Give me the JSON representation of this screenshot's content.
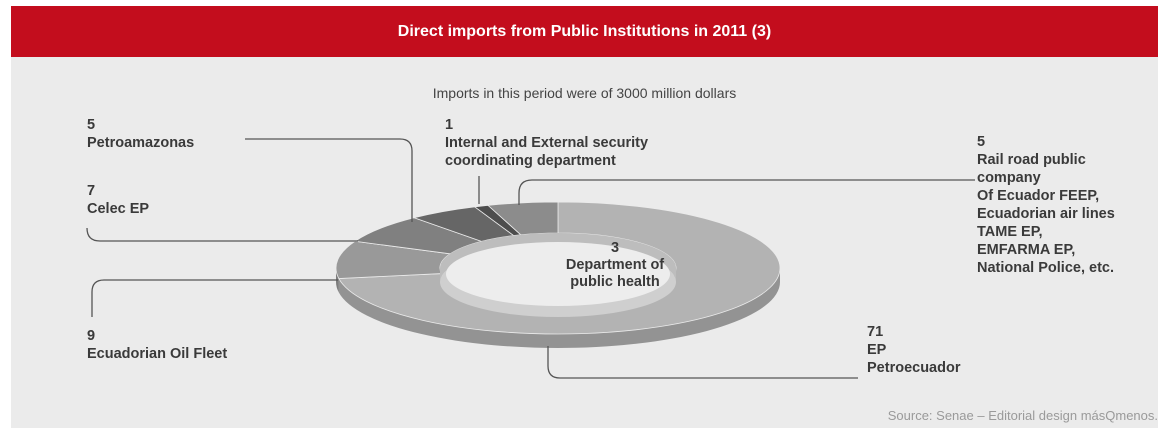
{
  "header": {
    "title": "Direct imports from Public Institutions in 2011 (3)"
  },
  "subtitle": "Imports in this period were of 3000 million dollars",
  "source": "Source: Senae – Editorial design másQmenos.",
  "colors": {
    "header": "#c30d1d",
    "background": "#ebebeb",
    "text": "#3a3a3a"
  },
  "chart_data": {
    "type": "pie",
    "style": "3d-donut",
    "title": "Direct imports from Public Institutions in 2011 (3)",
    "total": "3000 million dollars",
    "slices": [
      {
        "label": "EP\nPetroecuador",
        "value": 71,
        "color": "#b3b3b3"
      },
      {
        "label": "Ecuadorian Oil Fleet",
        "value": 9,
        "color": "#999999"
      },
      {
        "label": "Celec EP",
        "value": 7,
        "color": "#808080"
      },
      {
        "label": "Petroamazonas",
        "value": 5,
        "color": "#666666"
      },
      {
        "label": "Internal and External security\ncoordinating department",
        "value": 1,
        "color": "#4d4d4d"
      },
      {
        "label": "Department of\npublic health",
        "value": 3,
        "color": "#5a5a5a"
      },
      {
        "label": "Rail road public\ncompany\nOf Ecuador FEEP,\nEcuadorian air lines\nTAME EP,\nEMFARMA EP,\nNational Police, etc.",
        "value": 5,
        "color": "#8c8c8c"
      }
    ]
  }
}
